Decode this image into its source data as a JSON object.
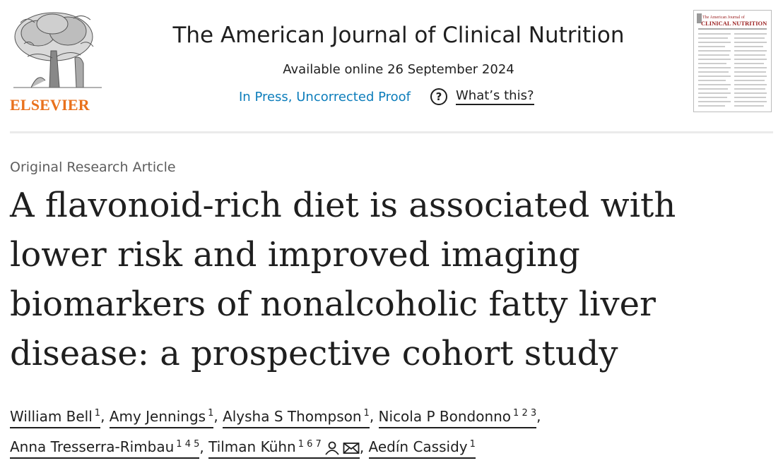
{
  "header": {
    "publisher_name": "ELSEVIER",
    "journal_title": "The American Journal of Clinical Nutrition",
    "available_online": "Available online 26 September 2024",
    "status_link": "In Press, Uncorrected Proof",
    "help_link": "What’s this?",
    "help_icon": "?",
    "cover_title_small": "The American Journal of",
    "cover_title_main": "CLINICAL NUTRITION"
  },
  "article": {
    "type": "Original Research Article",
    "title": "A flavonoid-rich diet is associated with lower risk and improved imaging biomarkers of nonalcoholic fatty liver disease: a prospective cohort study",
    "authors": [
      {
        "name": "William Bell",
        "sup": "1"
      },
      {
        "name": "Amy Jennings",
        "sup": "1"
      },
      {
        "name": "Alysha S Thompson",
        "sup": "1"
      },
      {
        "name": "Nicola P Bondonno",
        "sup": "1 2 3"
      },
      {
        "name": "Anna Tresserra-Rimbau",
        "sup": "1 4 5"
      },
      {
        "name": "Tilman Kühn",
        "sup": "1 6 7",
        "icons": [
          "person-icon",
          "envelope-icon"
        ]
      },
      {
        "name": "Aedín Cassidy",
        "sup": "1"
      }
    ]
  },
  "colors": {
    "publisher_orange": "#e9711c",
    "link_blue": "#0c7dbb",
    "text": "#1f1f1f",
    "muted": "#5e5e5e"
  }
}
